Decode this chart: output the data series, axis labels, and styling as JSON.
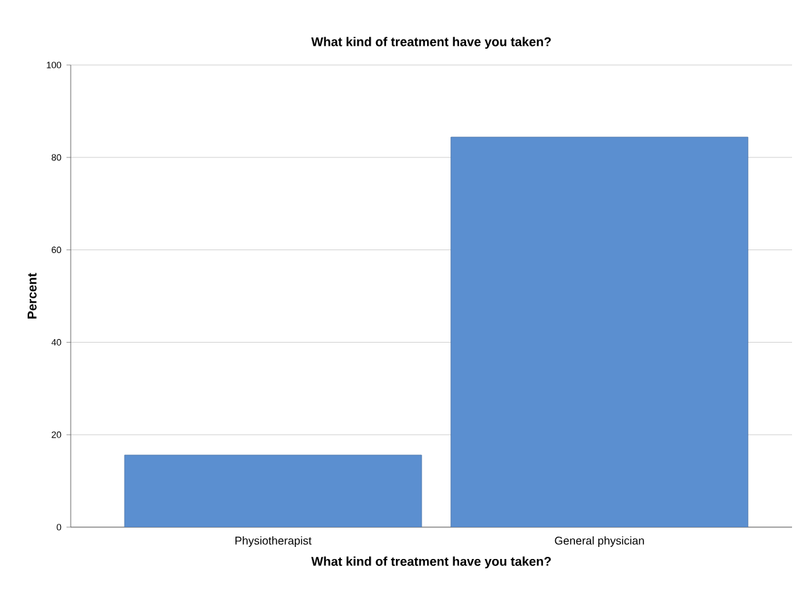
{
  "chart_data": {
    "type": "bar",
    "title": "What kind of treatment have you taken?",
    "xlabel": "What kind of treatment have you taken?",
    "ylabel": "Percent",
    "categories": [
      "Physiotherapist",
      "General physician"
    ],
    "values": [
      15.6,
      84.4
    ],
    "color": "#5b8fd0",
    "ylim": [
      0,
      100
    ],
    "yticks": [
      0,
      20,
      40,
      60,
      80,
      100
    ],
    "grid": "y"
  }
}
